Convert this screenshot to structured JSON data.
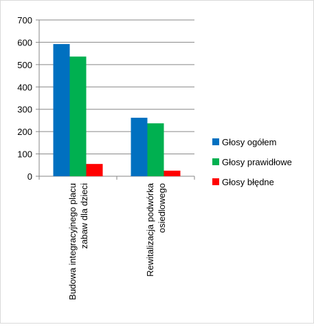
{
  "chart_data": {
    "type": "bar",
    "categories": [
      "Budowa integracyjnego placu zabaw dla dzieci",
      "Rewitalizacja podwórka osiedlowego"
    ],
    "category_lines": [
      [
        "Budowa integracyjnego placu",
        "zabaw dla dzieci"
      ],
      [
        "Rewitalizacja podwórka",
        "osiedlowego"
      ]
    ],
    "series": [
      {
        "name": "Głosy ogółem",
        "color": "#0070C0",
        "values": [
          592,
          262
        ]
      },
      {
        "name": "Głosy prawidłowe",
        "color": "#00B050",
        "values": [
          536,
          237
        ]
      },
      {
        "name": "Głosy błędne",
        "color": "#FF0000",
        "values": [
          55,
          25
        ]
      }
    ],
    "ylim": [
      0,
      700
    ],
    "yticks": [
      0,
      100,
      200,
      300,
      400,
      500,
      600,
      700
    ],
    "grid": true,
    "legend_position": "right",
    "title": "",
    "xlabel": "",
    "ylabel": ""
  }
}
